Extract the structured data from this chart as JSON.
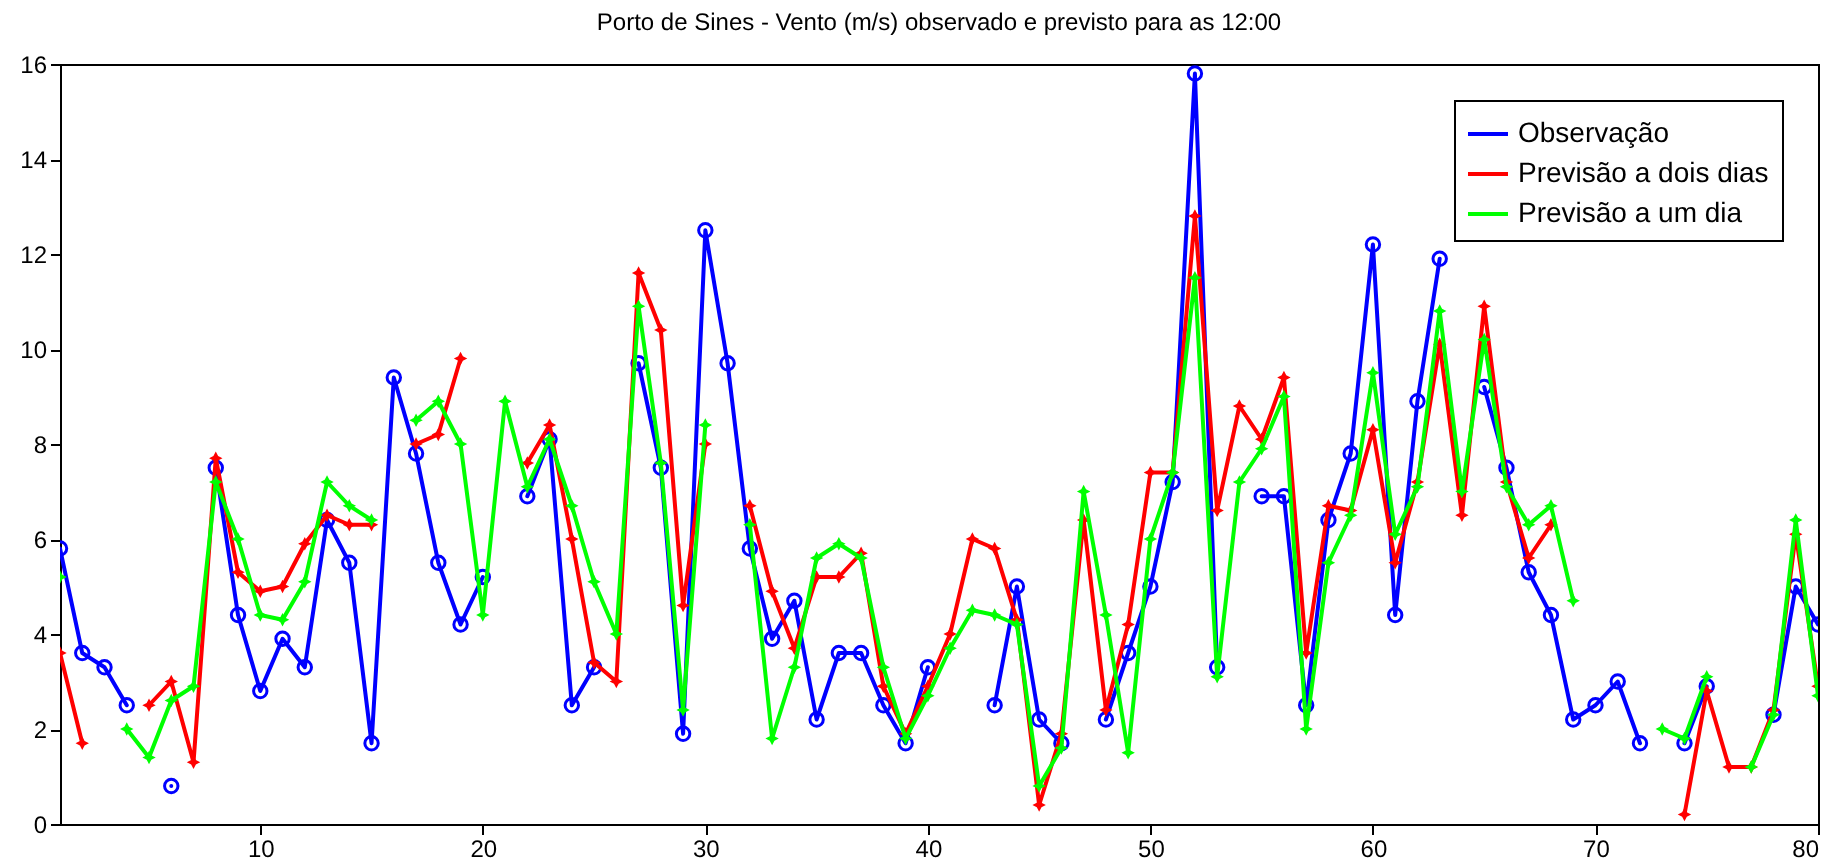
{
  "chart_data": {
    "type": "line",
    "title": "Porto de Sines - Vento (m/s) observado e previsto para as 12:00",
    "x": [
      1,
      2,
      3,
      4,
      5,
      6,
      7,
      8,
      9,
      10,
      11,
      12,
      13,
      14,
      15,
      16,
      17,
      18,
      19,
      20,
      21,
      22,
      23,
      24,
      25,
      26,
      27,
      28,
      29,
      30,
      31,
      32,
      33,
      34,
      35,
      36,
      37,
      38,
      39,
      40,
      41,
      42,
      43,
      44,
      45,
      46,
      47,
      48,
      49,
      50,
      51,
      52,
      53,
      54,
      55,
      56,
      57,
      58,
      59,
      60,
      61,
      62,
      63,
      64,
      65,
      66,
      67,
      68,
      69,
      70,
      71,
      72,
      73,
      74,
      75,
      76,
      77,
      78,
      79,
      80
    ],
    "xlim": [
      1,
      80
    ],
    "xticks": [
      10,
      20,
      30,
      40,
      50,
      60,
      70,
      80
    ],
    "ylim": [
      0,
      16
    ],
    "yticks": [
      0,
      2,
      4,
      6,
      8,
      10,
      12,
      14,
      16
    ],
    "grid": false,
    "legend": "top right",
    "series": [
      {
        "name": "Observação",
        "color": "#0000ff",
        "marker": "circle",
        "values": [
          5.8,
          3.6,
          3.3,
          2.5,
          null,
          0.8,
          null,
          7.5,
          4.4,
          2.8,
          3.9,
          3.3,
          6.4,
          5.5,
          1.7,
          9.4,
          7.8,
          5.5,
          4.2,
          5.2,
          null,
          6.9,
          8.1,
          2.5,
          3.3,
          null,
          9.7,
          7.5,
          1.9,
          12.5,
          9.7,
          5.8,
          3.9,
          4.7,
          2.2,
          3.6,
          3.6,
          2.5,
          1.7,
          3.3,
          null,
          null,
          2.5,
          5.0,
          2.2,
          1.7,
          null,
          2.2,
          3.6,
          5.0,
          7.2,
          15.8,
          3.3,
          null,
          6.9,
          6.9,
          2.5,
          6.4,
          7.8,
          12.2,
          4.4,
          8.9,
          11.9,
          null,
          9.2,
          7.5,
          5.3,
          4.4,
          2.2,
          2.5,
          3.0,
          1.7,
          null,
          1.7,
          2.9,
          null,
          null,
          2.3,
          5.0,
          4.2
        ]
      },
      {
        "name": "Previsão a dois dias",
        "color": "#ff0000",
        "marker": "star",
        "values": [
          3.6,
          1.7,
          null,
          null,
          2.5,
          3.0,
          1.3,
          7.7,
          5.3,
          4.9,
          5.0,
          5.9,
          6.5,
          6.3,
          6.3,
          null,
          8.0,
          8.2,
          9.8,
          null,
          null,
          7.6,
          8.4,
          6.0,
          3.4,
          3.0,
          11.6,
          10.4,
          4.6,
          8.0,
          null,
          6.7,
          4.9,
          3.7,
          5.2,
          5.2,
          5.7,
          2.9,
          1.9,
          2.9,
          4.0,
          6.0,
          5.8,
          4.3,
          0.4,
          1.9,
          6.4,
          2.4,
          4.2,
          7.4,
          7.4,
          12.8,
          6.6,
          8.8,
          8.1,
          9.4,
          3.6,
          6.7,
          6.6,
          8.3,
          5.5,
          7.2,
          10.1,
          6.5,
          10.9,
          7.2,
          5.6,
          6.3,
          null,
          null,
          null,
          null,
          null,
          0.2,
          2.8,
          1.2,
          1.2,
          2.4,
          6.1,
          2.9
        ]
      },
      {
        "name": "Previsão a um dia",
        "color": "#00ff00",
        "marker": "star",
        "values": [
          5.2,
          null,
          null,
          2.0,
          1.4,
          2.6,
          2.9,
          7.2,
          6.0,
          4.4,
          4.3,
          5.1,
          7.2,
          6.7,
          6.4,
          null,
          8.5,
          8.9,
          8.0,
          4.4,
          8.9,
          7.1,
          8.1,
          6.7,
          5.1,
          4.0,
          10.9,
          7.6,
          2.4,
          8.4,
          null,
          6.3,
          1.8,
          3.3,
          5.6,
          5.9,
          5.6,
          3.3,
          1.8,
          2.7,
          3.7,
          4.5,
          4.4,
          4.2,
          0.8,
          1.6,
          7.0,
          4.4,
          1.5,
          6.0,
          7.4,
          11.5,
          3.1,
          7.2,
          7.9,
          9.0,
          2.0,
          5.5,
          6.5,
          9.5,
          6.1,
          7.1,
          10.8,
          7.0,
          10.2,
          7.1,
          6.3,
          6.7,
          4.7,
          null,
          null,
          null,
          2.0,
          1.8,
          3.1,
          null,
          1.2,
          2.3,
          6.4,
          2.7
        ]
      }
    ]
  }
}
